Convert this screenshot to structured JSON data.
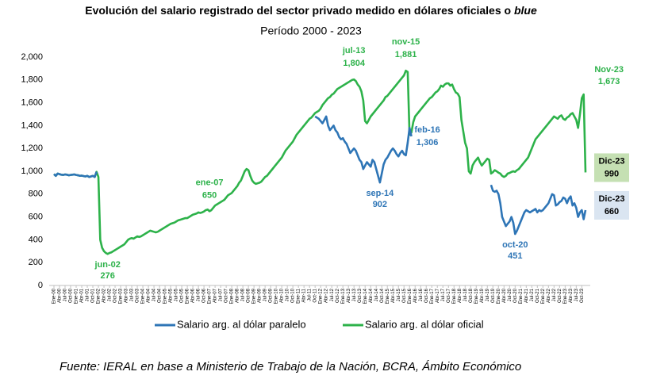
{
  "chart_data": {
    "type": "line",
    "title": "Evolución del salario registrado del sector privado medido en dólares oficiales o",
    "title_emphasis": "blue",
    "subtitle": "Período 2000 - 2023",
    "source": "Fuente: IERAL en base a Ministerio de Trabajo de la Nación, BCRA, Ámbito Económico",
    "categories": [
      "Ene-00",
      null,
      null,
      "Abr-00",
      null,
      null,
      "Jul-00",
      null,
      null,
      "Oct-00",
      null,
      null,
      "Ene-01",
      null,
      null,
      "Abr-01",
      null,
      null,
      "Jul-01",
      null,
      null,
      "Oct-01",
      null,
      null,
      "Ene-02",
      null,
      null,
      "Abr-02",
      null,
      null,
      "Jul-02",
      null,
      null,
      "Oct-02",
      null,
      null,
      "Ene-03",
      null,
      null,
      "Abr-03",
      null,
      null,
      "Jul-03",
      null,
      null,
      "Oct-03",
      null,
      null,
      "Ene-04",
      null,
      null,
      "Abr-04",
      null,
      null,
      "Jul-04",
      null,
      null,
      "Oct-04",
      null,
      null,
      "Ene-05",
      null,
      null,
      "Abr-05",
      null,
      null,
      "Jul-05",
      null,
      null,
      "Oct-05",
      null,
      null,
      "Ene-06",
      null,
      null,
      "Abr-06",
      null,
      null,
      "Jul-06",
      null,
      null,
      "Oct-06",
      null,
      null,
      "Ene-07",
      null,
      null,
      "Abr-07",
      null,
      null,
      "Jul-07",
      null,
      null,
      "Oct-07",
      null,
      null,
      "Ene-08",
      null,
      null,
      "Abr-08",
      null,
      null,
      "Jul-08",
      null,
      null,
      "Oct-08",
      null,
      null,
      "Ene-09",
      null,
      null,
      "Abr-09",
      null,
      null,
      "Jul-09",
      null,
      null,
      "Oct-09",
      null,
      null,
      "Ene-10",
      null,
      null,
      "Abr-10",
      null,
      null,
      "Jul-10",
      null,
      null,
      "Oct-10",
      null,
      null,
      "Ene-11",
      null,
      null,
      "Abr-11",
      null,
      null,
      "Jul-11",
      null,
      null,
      "Oct-11",
      null,
      null,
      "Ene-12",
      null,
      null,
      "Abr-12",
      null,
      null,
      "Jul-12",
      null,
      null,
      "Oct-12",
      null,
      null,
      "Ene-13",
      null,
      null,
      "Abr-13",
      null,
      null,
      "Jul-13",
      null,
      null,
      "Oct-13",
      null,
      null,
      "Ene-14",
      null,
      null,
      "Abr-14",
      null,
      null,
      "Jul-14",
      null,
      null,
      "Oct-14",
      null,
      null,
      "Ene-15",
      null,
      null,
      "Abr-15",
      null,
      null,
      "Jul-15",
      null,
      null,
      "Oct-15",
      null,
      null,
      "Ene-16",
      null,
      null,
      "Abr-16",
      null,
      null,
      "Jul-16",
      null,
      null,
      "Oct-16",
      null,
      null,
      "Ene-17",
      null,
      null,
      "Abr-17",
      null,
      null,
      "Jul-17",
      null,
      null,
      "Oct-17",
      null,
      null,
      "Ene-18",
      null,
      null,
      "Abr-18",
      null,
      null,
      "Jul-18",
      null,
      null,
      "Oct-18",
      null,
      null,
      "Ene-19",
      null,
      null,
      "Abr-19",
      null,
      null,
      "Jul-19",
      null,
      null,
      "Oct-19",
      null,
      null,
      "Ene-20",
      null,
      null,
      "Abr-20",
      null,
      null,
      "Jul-20",
      null,
      null,
      "Oct-20",
      null,
      null,
      "Ene-21",
      null,
      null,
      "Abr-21",
      null,
      null,
      "Jul-21",
      null,
      null,
      "Oct-21",
      null,
      null,
      "Ene-22",
      null,
      null,
      "Abr-22",
      null,
      null,
      "Jul-22",
      null,
      null,
      "Oct-22",
      null,
      null,
      "Ene-23",
      null,
      null,
      "Abr-23",
      null,
      null,
      "Jul-23",
      null,
      null,
      "Oct-23",
      null,
      null
    ],
    "series": [
      {
        "name": "Salario arg. al dólar paralelo",
        "color": "#2e75b6",
        "values": [
          975,
          960,
          980,
          975,
          970,
          968,
          972,
          970,
          965,
          968,
          970,
          972,
          968,
          965,
          960,
          962,
          958,
          955,
          960,
          950,
          955,
          960,
          950,
          995,
          null,
          null,
          null,
          null,
          null,
          null,
          null,
          null,
          null,
          null,
          null,
          null,
          null,
          null,
          null,
          null,
          null,
          null,
          null,
          null,
          null,
          null,
          null,
          null,
          null,
          null,
          null,
          null,
          null,
          null,
          null,
          null,
          null,
          null,
          null,
          null,
          null,
          null,
          null,
          null,
          null,
          null,
          null,
          null,
          null,
          null,
          null,
          null,
          null,
          null,
          null,
          null,
          null,
          null,
          null,
          null,
          null,
          null,
          null,
          null,
          null,
          null,
          null,
          null,
          null,
          null,
          null,
          null,
          null,
          null,
          null,
          null,
          null,
          null,
          null,
          null,
          null,
          null,
          null,
          null,
          null,
          null,
          null,
          null,
          null,
          null,
          null,
          null,
          null,
          null,
          null,
          null,
          null,
          null,
          null,
          null,
          null,
          null,
          null,
          null,
          null,
          null,
          null,
          null,
          null,
          null,
          null,
          null,
          null,
          null,
          null,
          null,
          null,
          null,
          null,
          null,
          null,
          1480,
          1470,
          1460,
          1440,
          1420,
          1450,
          1480,
          1400,
          1360,
          1380,
          1400,
          1360,
          1340,
          1300,
          1280,
          1290,
          1260,
          1240,
          1200,
          1160,
          1180,
          1200,
          1180,
          1140,
          1100,
          1080,
          1020,
          1050,
          1080,
          1060,
          1040,
          1100,
          1080,
          1020,
          960,
          902,
          980,
          1060,
          1100,
          1120,
          1150,
          1180,
          1200,
          1180,
          1150,
          1130,
          1160,
          1180,
          1150,
          1140,
          1250,
          1380,
          1306,
          null,
          null,
          null,
          null,
          null,
          null,
          null,
          null,
          null,
          null,
          null,
          null,
          null,
          null,
          null,
          null,
          null,
          null,
          null,
          null,
          null,
          null,
          null,
          null,
          null,
          null,
          null,
          null,
          null,
          null,
          null,
          null,
          null,
          null,
          null,
          null,
          null,
          null,
          null,
          null,
          null,
          null,
          880,
          830,
          820,
          830,
          800,
          720,
          600,
          560,
          520,
          540,
          560,
          600,
          550,
          451,
          480,
          520,
          560,
          600,
          640,
          660,
          650,
          640,
          650,
          660,
          670,
          640,
          660,
          650,
          660,
          680,
          700,
          720,
          760,
          800,
          790,
          700,
          710,
          730,
          740,
          770,
          760,
          720,
          760,
          780,
          700,
          720,
          680,
          600,
          640,
          660,
          580,
          660
        ]
      },
      {
        "name": "Salario arg. al dólar oficial",
        "color": "#2db24a",
        "values": [
          975,
          960,
          980,
          975,
          970,
          968,
          972,
          970,
          965,
          968,
          970,
          972,
          968,
          965,
          960,
          962,
          958,
          955,
          960,
          950,
          955,
          960,
          950,
          995,
          950,
          400,
          330,
          300,
          285,
          276,
          285,
          290,
          300,
          310,
          320,
          330,
          340,
          350,
          360,
          380,
          400,
          410,
          415,
          410,
          420,
          430,
          425,
          430,
          440,
          450,
          460,
          470,
          480,
          475,
          470,
          465,
          470,
          480,
          490,
          500,
          510,
          520,
          530,
          540,
          545,
          550,
          560,
          570,
          575,
          580,
          585,
          590,
          590,
          600,
          610,
          620,
          625,
          630,
          640,
          635,
          640,
          648,
          660,
          665,
          650,
          660,
          680,
          700,
          710,
          720,
          730,
          740,
          750,
          770,
          790,
          800,
          810,
          830,
          850,
          870,
          900,
          920,
          960,
          1000,
          1020,
          1010,
          960,
          920,
          900,
          890,
          895,
          900,
          910,
          930,
          950,
          960,
          980,
          1000,
          1020,
          1040,
          1060,
          1080,
          1100,
          1120,
          1150,
          1180,
          1200,
          1220,
          1240,
          1260,
          1290,
          1320,
          1340,
          1360,
          1380,
          1400,
          1420,
          1440,
          1460,
          1470,
          1490,
          1510,
          1520,
          1530,
          1550,
          1580,
          1600,
          1620,
          1640,
          1650,
          1670,
          1680,
          1700,
          1720,
          1730,
          1740,
          1750,
          1760,
          1770,
          1780,
          1790,
          1800,
          1804,
          1790,
          1760,
          1740,
          1700,
          1620,
          1440,
          1420,
          1450,
          1480,
          1500,
          1520,
          1540,
          1560,
          1580,
          1600,
          1620,
          1650,
          1660,
          1680,
          1700,
          1720,
          1740,
          1760,
          1780,
          1800,
          1820,
          1840,
          1881,
          1870,
          1320,
          1340,
          1430,
          1480,
          1500,
          1520,
          1540,
          1560,
          1580,
          1600,
          1620,
          1640,
          1650,
          1670,
          1690,
          1700,
          1720,
          1750,
          1740,
          1760,
          1770,
          1770,
          1750,
          1760,
          1720,
          1690,
          1680,
          1650,
          1450,
          1350,
          1250,
          1200,
          1000,
          980,
          1050,
          1080,
          1100,
          1120,
          1080,
          1050,
          1070,
          1090,
          1110,
          1100,
          980,
          992,
          1010,
          1000,
          988,
          980,
          960,
          950,
          960,
          980,
          985,
          994,
          1000,
          995,
          1010,
          1020,
          1040,
          1060,
          1080,
          1100,
          1120,
          1160,
          1200,
          1240,
          1280,
          1300,
          1320,
          1340,
          1360,
          1380,
          1400,
          1420,
          1440,
          1460,
          1480,
          1470,
          1460,
          1480,
          1490,
          1460,
          1450,
          1470,
          1480,
          1500,
          1510,
          1480,
          1450,
          1380,
          1500,
          1640,
          1673,
          990
        ]
      }
    ],
    "ylim": [
      0,
      2000
    ],
    "yticks": [
      0,
      200,
      400,
      600,
      800,
      {
        "value": 1000,
        "label": "1,000"
      },
      {
        "value": 1200,
        "label": "1,200"
      },
      {
        "value": 1400,
        "label": "1,400"
      },
      {
        "value": 1600,
        "label": "1,600"
      },
      {
        "value": 1800,
        "label": "1,800"
      },
      {
        "value": 2000,
        "label": "2,000"
      }
    ],
    "annotations": [
      {
        "text": "jun-02",
        "value": 276,
        "color": "#2db24a",
        "placement": "below"
      },
      {
        "text": "ene-07",
        "value": 650,
        "color": "#2db24a",
        "placement": "above"
      },
      {
        "text": "jul-13",
        "value": 1804,
        "value_label": "1,804",
        "color": "#2db24a",
        "placement": "above"
      },
      {
        "text": "nov-15",
        "value": 1881,
        "value_label": "1,881",
        "color": "#2db24a",
        "placement": "above"
      },
      {
        "text": "feb-16",
        "value": 1306,
        "value_label": "1,306",
        "color": "#2e75b6",
        "placement": "right"
      },
      {
        "text": "sep-14",
        "value": 902,
        "color": "#2e75b6",
        "placement": "below"
      },
      {
        "text": "oct-20",
        "value": 451,
        "color": "#2e75b6",
        "placement": "below"
      },
      {
        "text": "Nov-23",
        "value": 1673,
        "value_label": "1,673",
        "color": "#2db24a",
        "placement": "above"
      },
      {
        "text": "Dic-23",
        "value": 990,
        "color": "#2db24a",
        "placement": "box",
        "box_color": "#c5e0b3"
      },
      {
        "text": "Dic-23",
        "value": 660,
        "color": "#2e75b6",
        "placement": "box",
        "box_color": "#dae5f1"
      }
    ],
    "legend": "bottom"
  }
}
